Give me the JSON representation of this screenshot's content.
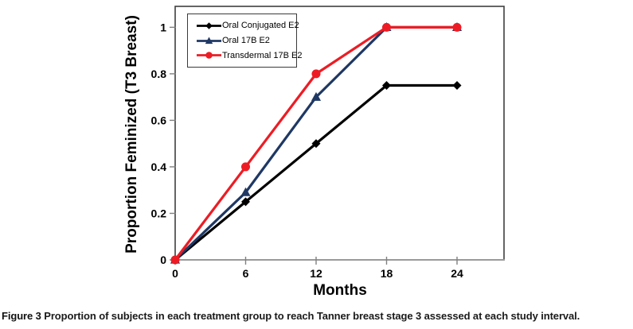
{
  "chart_data": {
    "type": "line",
    "title": "",
    "xlabel": "Months",
    "ylabel": "Proportion Feminized (T3 Breast)",
    "x": [
      0,
      6,
      12,
      18,
      24
    ],
    "xtick_labels": [
      "0",
      "6",
      "12",
      "18",
      "24"
    ],
    "ytick_values": [
      0,
      0.2,
      0.4,
      0.6,
      0.8,
      1
    ],
    "ytick_labels": [
      "0",
      "0.2",
      "0.4",
      "0.6",
      "0.8",
      "1"
    ],
    "xlim": [
      0,
      28
    ],
    "ylim": [
      0,
      1.09
    ],
    "grid": false,
    "legend_position": "top-left-inside",
    "series": [
      {
        "name": "Oral Conjugated E2",
        "color": "#000000",
        "marker": "diamond",
        "values": [
          0,
          0.25,
          0.5,
          0.75,
          0.75
        ]
      },
      {
        "name": "Oral 17B E2",
        "color": "#1f3864",
        "marker": "triangle",
        "values": [
          0,
          0.29,
          0.7,
          1,
          1
        ]
      },
      {
        "name": "Transdermal 17B E2",
        "color": "#ed1c24",
        "marker": "circle",
        "values": [
          0,
          0.4,
          0.8,
          1,
          1
        ]
      }
    ],
    "axis_color": "#3f3f3f",
    "baseline_color": "#9a9a9a",
    "tick_color": "#808080"
  },
  "caption": {
    "label": "Figure 3",
    "text": "Proportion of subjects in each treatment group to reach Tanner breast stage 3 assessed at each study interval."
  }
}
